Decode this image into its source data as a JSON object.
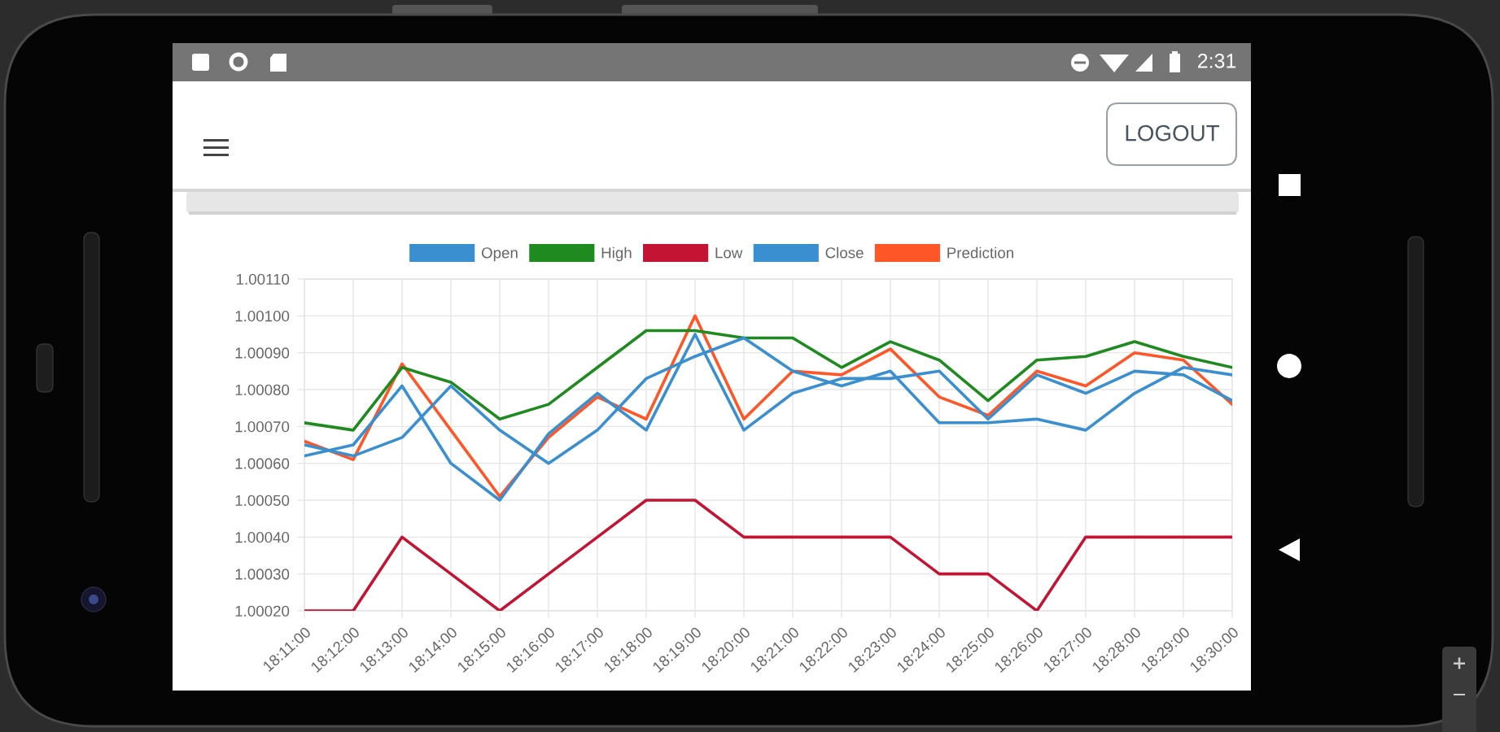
{
  "chart_data": {
    "type": "line",
    "categories": [
      "18:11:00",
      "18:12:00",
      "18:13:00",
      "18:14:00",
      "18:15:00",
      "18:16:00",
      "18:17:00",
      "18:18:00",
      "18:19:00",
      "18:20:00",
      "18:21:00",
      "18:22:00",
      "18:23:00",
      "18:24:00",
      "18:25:00",
      "18:26:00",
      "18:27:00",
      "18:28:00",
      "18:29:00",
      "18:30:00"
    ],
    "series": [
      {
        "name": "Open",
        "color": "#3a8fd0",
        "values": [
          1.00065,
          1.00062,
          1.00067,
          1.00081,
          1.00069,
          1.0006,
          1.00069,
          1.00083,
          1.00089,
          1.00094,
          1.00085,
          1.00081,
          1.00085,
          1.00071,
          1.00071,
          1.00072,
          1.00069,
          1.00079,
          1.00086,
          1.00084
        ]
      },
      {
        "name": "High",
        "color": "#1f8a1f",
        "values": [
          1.00071,
          1.00069,
          1.00086,
          1.00082,
          1.00072,
          1.00076,
          1.00086,
          1.00096,
          1.00096,
          1.00094,
          1.00094,
          1.00086,
          1.00093,
          1.00088,
          1.00077,
          1.00088,
          1.00089,
          1.00093,
          1.00089,
          1.00086
        ]
      },
      {
        "name": "Low",
        "color": "#c41434",
        "values": [
          1.0002,
          1.0002,
          1.0004,
          1.0003,
          1.0002,
          1.0003,
          1.0004,
          1.0005,
          1.0005,
          1.0004,
          1.0004,
          1.0004,
          1.0004,
          1.0003,
          1.0003,
          1.0002,
          1.0004,
          1.0004,
          1.0004,
          1.0004
        ]
      },
      {
        "name": "Close",
        "color": "#3a8fd0",
        "values": [
          1.00062,
          1.00065,
          1.00081,
          1.0006,
          1.0005,
          1.00068,
          1.00079,
          1.00069,
          1.00095,
          1.00069,
          1.00079,
          1.00083,
          1.00083,
          1.00085,
          1.00072,
          1.00084,
          1.00079,
          1.00085,
          1.00084,
          1.00077
        ]
      },
      {
        "name": "Prediction",
        "color": "#ff5628",
        "values": [
          1.00066,
          1.00061,
          1.00087,
          1.00069,
          1.00051,
          1.00067,
          1.00078,
          1.00072,
          1.001,
          1.00072,
          1.00085,
          1.00084,
          1.00091,
          1.00078,
          1.00073,
          1.00085,
          1.00081,
          1.0009,
          1.00088,
          1.00076
        ]
      }
    ],
    "ylim": [
      1.0002,
      1.0011
    ],
    "yticks": [
      {
        "value": 1.0002,
        "label": "1.00020"
      },
      {
        "value": 1.0003,
        "label": "1.00030"
      },
      {
        "value": 1.0004,
        "label": "1.00040"
      },
      {
        "value": 1.0005,
        "label": "1.00050"
      },
      {
        "value": 1.0006,
        "label": "1.00060"
      },
      {
        "value": 1.0007,
        "label": "1.00070"
      },
      {
        "value": 1.0008,
        "label": "1.00080"
      },
      {
        "value": 1.0009,
        "label": "1.00090"
      },
      {
        "value": 1.001,
        "label": "1.00100"
      },
      {
        "value": 1.0011,
        "label": "1.00110"
      }
    ],
    "grid": true,
    "legend": "top",
    "line_style": "solid",
    "annotations": [
      "LOGOUT",
      "2:31"
    ]
  }
}
